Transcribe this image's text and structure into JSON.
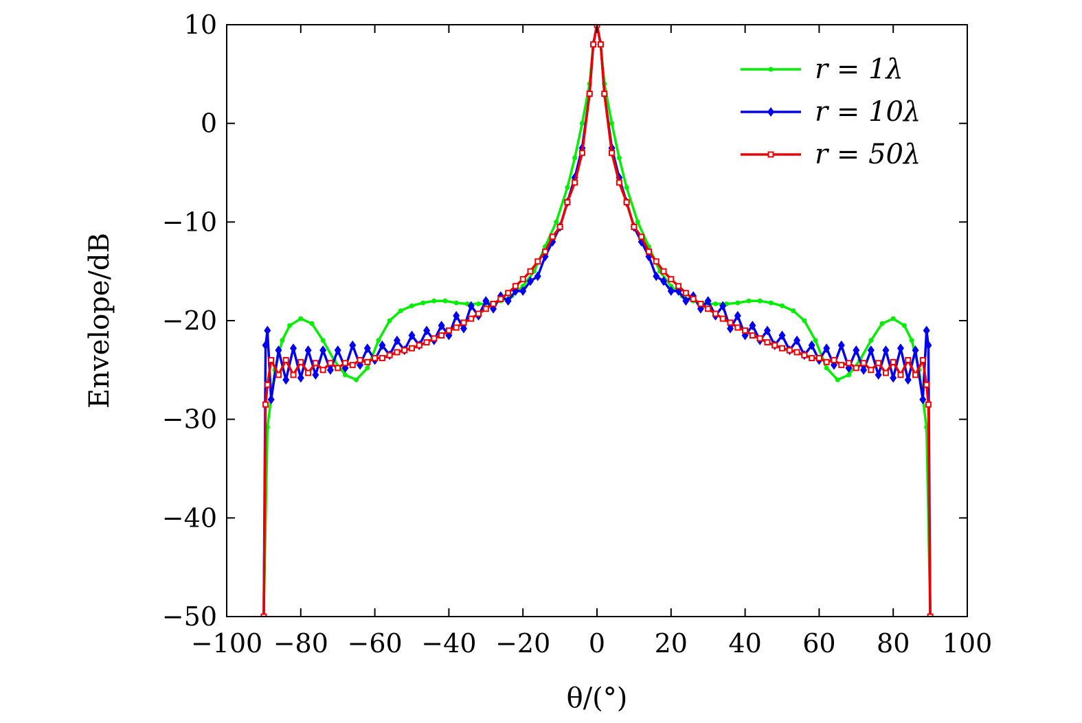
{
  "chart_data": {
    "type": "line",
    "xlabel": "θ/(°)",
    "ylabel": "Envelope/dB",
    "xlim": [
      -100,
      100
    ],
    "ylim": [
      -50,
      10
    ],
    "x_ticks": [
      -100,
      -80,
      -60,
      -40,
      -20,
      0,
      20,
      40,
      60,
      80,
      100
    ],
    "y_ticks": [
      -50,
      -40,
      -30,
      -20,
      -10,
      0,
      10
    ],
    "x_tick_labels": [
      "−100",
      "−80",
      "−60",
      "−40",
      "−20",
      "0",
      "20",
      "40",
      "60",
      "80",
      "100"
    ],
    "y_tick_labels": [
      "−50",
      "−40",
      "−30",
      "−20",
      "−10",
      "0",
      "10"
    ],
    "legend_position": "top-right",
    "grid": false,
    "series": [
      {
        "name": "r = 1λ",
        "color": "#00ee00",
        "marker": "circle",
        "x": [
          -90,
          -89,
          -87,
          -85,
          -83,
          -80,
          -77,
          -74,
          -71,
          -68,
          -65,
          -62,
          -59,
          -56,
          -53,
          -50,
          -47,
          -44,
          -41,
          -38,
          -35,
          -32,
          -29,
          -26,
          -23,
          -20,
          -17,
          -14,
          -11,
          -8,
          -6,
          -4,
          -2,
          -1,
          0,
          1,
          2,
          4,
          6,
          8,
          11,
          14,
          17,
          20,
          23,
          26,
          29,
          32,
          35,
          38,
          41,
          44,
          47,
          50,
          53,
          56,
          59,
          62,
          65,
          68,
          71,
          74,
          77,
          80,
          83,
          85,
          87,
          89,
          90
        ],
        "y": [
          -50,
          -30.8,
          -25.0,
          -22.0,
          -20.5,
          -19.8,
          -20.3,
          -22.0,
          -24.0,
          -25.5,
          -26.0,
          -24.8,
          -22.0,
          -20.0,
          -19.0,
          -18.5,
          -18.2,
          -18.0,
          -18.0,
          -18.2,
          -18.3,
          -18.3,
          -18.3,
          -18.0,
          -17.5,
          -16.5,
          -15.0,
          -12.5,
          -10.0,
          -6.5,
          -3.5,
          0.0,
          4.0,
          8.0,
          10.0,
          8.0,
          4.0,
          0.0,
          -3.5,
          -6.5,
          -10.0,
          -12.5,
          -15.0,
          -16.5,
          -17.5,
          -18.0,
          -18.3,
          -18.3,
          -18.3,
          -18.2,
          -18.0,
          -18.0,
          -18.2,
          -18.5,
          -19.0,
          -20.0,
          -22.0,
          -24.8,
          -26.0,
          -25.5,
          -24.0,
          -22.0,
          -20.3,
          -19.8,
          -20.5,
          -22.0,
          -25.0,
          -30.8,
          -50
        ]
      },
      {
        "name": "r = 10λ",
        "color": "#0000ee",
        "marker": "diamond",
        "x": [
          -90,
          -89.5,
          -89,
          -88,
          -86,
          -84,
          -82,
          -80,
          -78,
          -76,
          -74,
          -72,
          -70,
          -68,
          -66,
          -64,
          -62,
          -60,
          -58,
          -56,
          -54,
          -52,
          -50,
          -48,
          -46,
          -44,
          -42,
          -40,
          -38,
          -36,
          -34,
          -32,
          -30,
          -28,
          -26,
          -24,
          -22,
          -20,
          -18,
          -16,
          -14,
          -12,
          -10,
          -8,
          -6,
          -4,
          -2,
          -1,
          0,
          1,
          2,
          4,
          6,
          8,
          10,
          12,
          14,
          16,
          18,
          20,
          22,
          24,
          26,
          28,
          30,
          32,
          34,
          36,
          38,
          40,
          42,
          44,
          46,
          48,
          50,
          52,
          54,
          56,
          58,
          60,
          62,
          64,
          66,
          68,
          70,
          72,
          74,
          76,
          78,
          80,
          82,
          84,
          86,
          88,
          89,
          89.5,
          90
        ],
        "y": [
          -50,
          -22.5,
          -21.0,
          -28.0,
          -23.0,
          -26.0,
          -22.8,
          -25.8,
          -23.0,
          -25.5,
          -23.0,
          -25.0,
          -23.0,
          -24.8,
          -22.5,
          -24.5,
          -22.8,
          -24.0,
          -22.5,
          -23.5,
          -22.0,
          -23.0,
          -21.5,
          -22.5,
          -21.0,
          -22.0,
          -20.5,
          -21.5,
          -19.5,
          -20.8,
          -18.5,
          -19.5,
          -18.0,
          -18.8,
          -17.5,
          -18.0,
          -17.0,
          -17.0,
          -16.0,
          -15.5,
          -13.5,
          -12.0,
          -10.5,
          -8.0,
          -5.5,
          -2.5,
          3.0,
          8.0,
          10.0,
          8.0,
          3.0,
          -2.5,
          -5.5,
          -8.0,
          -10.5,
          -12.0,
          -13.5,
          -15.5,
          -16.0,
          -17.0,
          -17.0,
          -18.0,
          -17.5,
          -18.8,
          -18.0,
          -19.5,
          -18.5,
          -20.8,
          -19.5,
          -21.5,
          -20.5,
          -22.0,
          -21.0,
          -22.5,
          -21.5,
          -23.0,
          -22.0,
          -23.5,
          -22.5,
          -24.0,
          -22.8,
          -24.5,
          -22.5,
          -24.8,
          -23.0,
          -25.0,
          -23.0,
          -25.5,
          -23.0,
          -25.8,
          -22.8,
          -26.0,
          -23.0,
          -28.0,
          -21.0,
          -22.5,
          -50
        ]
      },
      {
        "name": "r = 50λ",
        "color": "#ee0000",
        "marker": "square",
        "x": [
          -90,
          -89.5,
          -89,
          -88,
          -86,
          -84,
          -82,
          -80,
          -78,
          -76,
          -74,
          -72,
          -70,
          -68,
          -66,
          -64,
          -62,
          -60,
          -58,
          -56,
          -54,
          -52,
          -50,
          -48,
          -46,
          -44,
          -42,
          -40,
          -38,
          -36,
          -34,
          -32,
          -30,
          -28,
          -26,
          -24,
          -22,
          -20,
          -18,
          -16,
          -14,
          -12,
          -10,
          -8,
          -6,
          -4,
          -2,
          -1,
          0,
          1,
          2,
          4,
          6,
          8,
          10,
          12,
          14,
          16,
          18,
          20,
          22,
          24,
          26,
          28,
          30,
          32,
          34,
          36,
          38,
          40,
          42,
          44,
          46,
          48,
          50,
          52,
          54,
          56,
          58,
          60,
          62,
          64,
          66,
          68,
          70,
          72,
          74,
          76,
          78,
          80,
          82,
          84,
          86,
          88,
          89,
          89.5,
          90
        ],
        "y": [
          -50,
          -28.5,
          -26.5,
          -24.0,
          -25.5,
          -24.0,
          -25.5,
          -24.2,
          -25.3,
          -24.3,
          -25.0,
          -24.3,
          -24.8,
          -24.3,
          -24.5,
          -24.0,
          -24.2,
          -23.8,
          -23.8,
          -23.5,
          -23.2,
          -23.0,
          -22.8,
          -22.5,
          -22.2,
          -21.8,
          -21.5,
          -21.0,
          -20.7,
          -20.2,
          -19.8,
          -19.3,
          -18.8,
          -18.3,
          -17.8,
          -17.2,
          -16.5,
          -15.8,
          -15.0,
          -14.0,
          -13.0,
          -11.5,
          -10.5,
          -8.0,
          -6.0,
          -3.0,
          3.0,
          8.0,
          10.0,
          8.0,
          3.0,
          -3.0,
          -6.0,
          -8.0,
          -10.5,
          -11.5,
          -13.0,
          -14.0,
          -15.0,
          -15.8,
          -16.5,
          -17.2,
          -17.8,
          -18.3,
          -18.8,
          -19.3,
          -19.8,
          -20.2,
          -20.7,
          -21.0,
          -21.5,
          -21.8,
          -22.2,
          -22.5,
          -22.8,
          -23.0,
          -23.2,
          -23.5,
          -23.8,
          -23.8,
          -24.2,
          -24.0,
          -24.5,
          -24.3,
          -24.8,
          -24.3,
          -25.0,
          -24.3,
          -25.3,
          -24.2,
          -25.5,
          -24.0,
          -25.5,
          -24.0,
          -26.5,
          -28.5,
          -50
        ]
      }
    ]
  }
}
